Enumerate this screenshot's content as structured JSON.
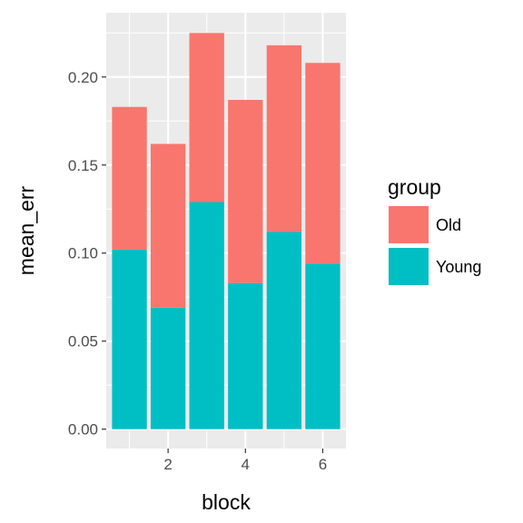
{
  "chart_data": {
    "type": "bar",
    "stacked": true,
    "x": [
      1,
      2,
      3,
      4,
      5,
      6
    ],
    "xticks": [
      2,
      4,
      6
    ],
    "xlim": [
      0.4,
      6.6
    ],
    "yticks": [
      "0.00",
      "0.05",
      "0.10",
      "0.15",
      "0.20"
    ],
    "ylim": [
      -0.011,
      0.2365
    ],
    "xlabel": "block",
    "ylabel": "mean_err",
    "grid": true,
    "panel_background": "#ebebeb",
    "series": [
      {
        "name": "Young",
        "color": "#00bfc4",
        "values": [
          0.102,
          0.069,
          0.129,
          0.083,
          0.112,
          0.094
        ]
      },
      {
        "name": "Old",
        "color": "#f8766d",
        "values": [
          0.081,
          0.093,
          0.096,
          0.104,
          0.106,
          0.114
        ]
      }
    ],
    "totals": [
      0.183,
      0.162,
      0.225,
      0.187,
      0.218,
      0.208
    ],
    "legend": {
      "title": "group",
      "placement": "right",
      "items": [
        {
          "label": "Old",
          "color": "#f8766d"
        },
        {
          "label": "Young",
          "color": "#00bfc4"
        }
      ]
    }
  }
}
